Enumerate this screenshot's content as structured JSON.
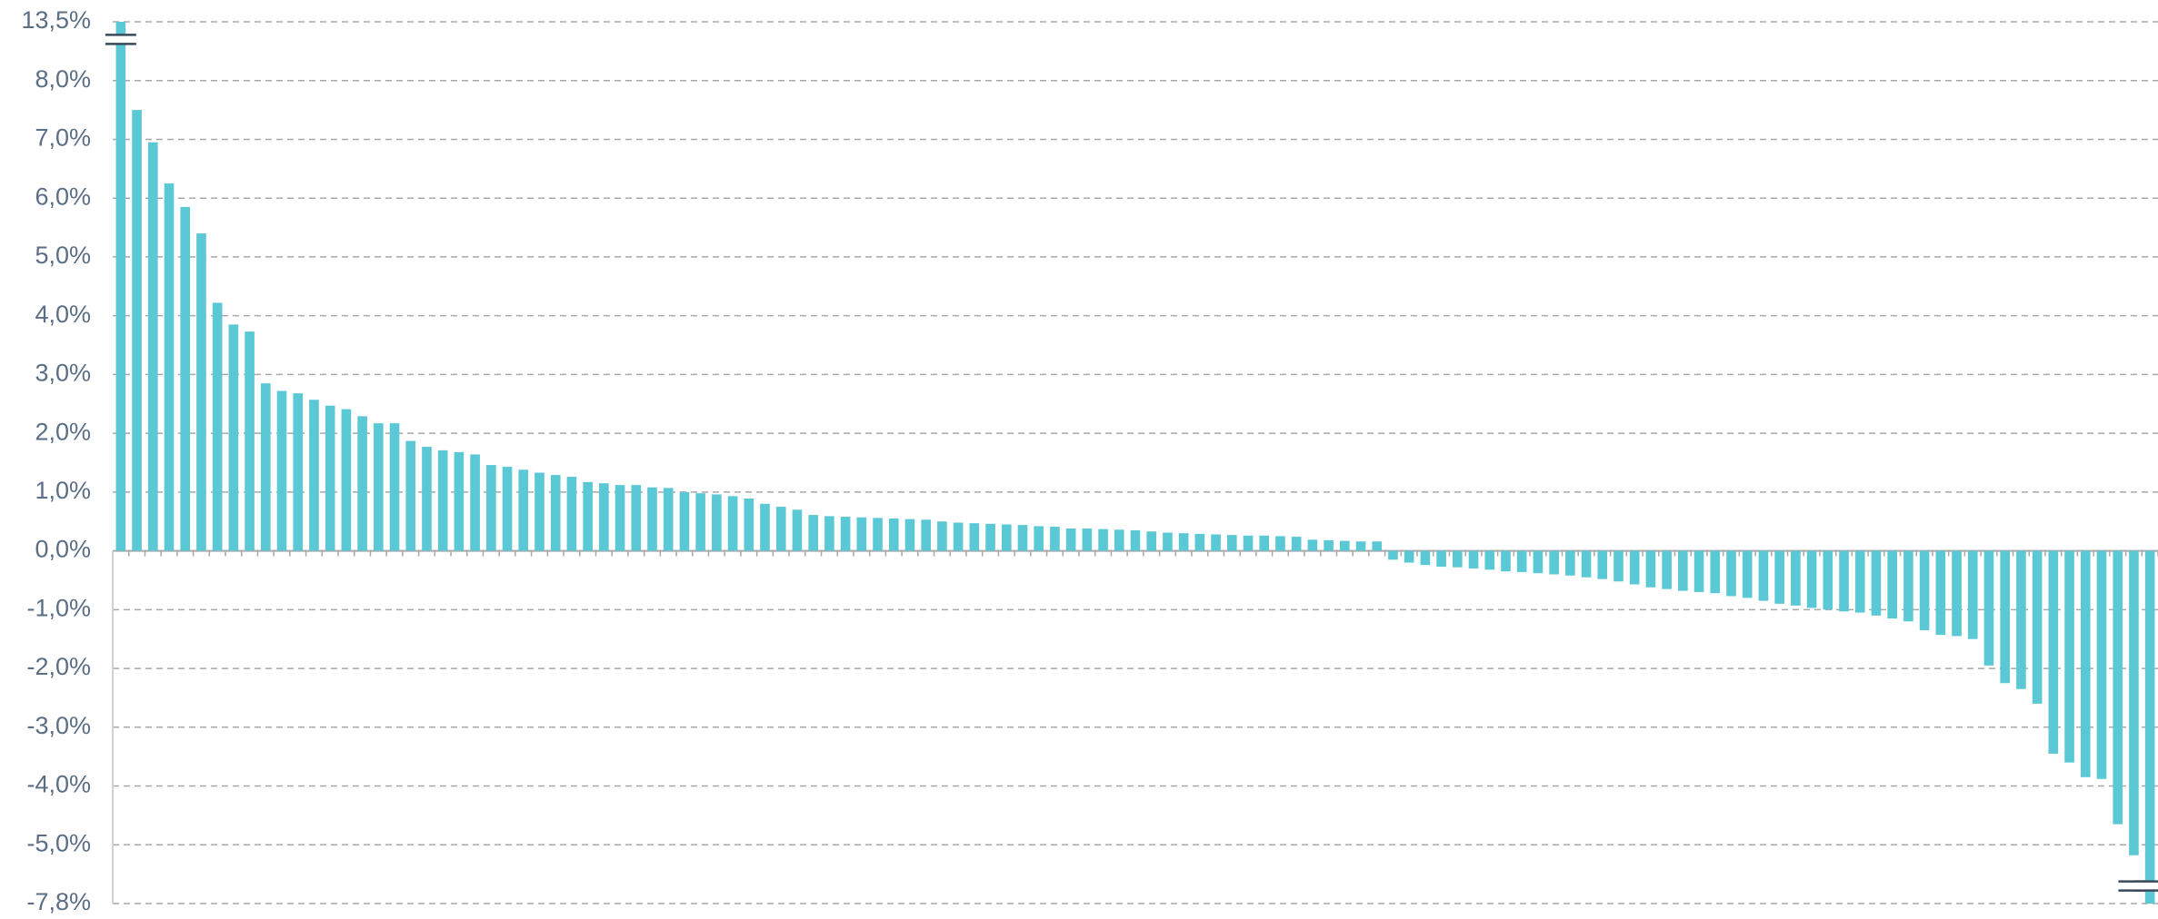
{
  "chart_data": {
    "type": "bar",
    "color": "#5bc8d6",
    "grid": true,
    "values": [
      13.5,
      7.5,
      6.95,
      6.25,
      5.85,
      5.4,
      4.22,
      3.85,
      3.73,
      2.85,
      2.72,
      2.68,
      2.57,
      2.47,
      2.41,
      2.29,
      2.17,
      2.17,
      1.87,
      1.77,
      1.71,
      1.68,
      1.64,
      1.46,
      1.43,
      1.38,
      1.33,
      1.29,
      1.26,
      1.17,
      1.15,
      1.12,
      1.12,
      1.08,
      1.07,
      1.0,
      0.98,
      0.96,
      0.93,
      0.89,
      0.8,
      0.75,
      0.7,
      0.61,
      0.59,
      0.58,
      0.57,
      0.56,
      0.55,
      0.54,
      0.53,
      0.5,
      0.48,
      0.47,
      0.46,
      0.45,
      0.44,
      0.42,
      0.41,
      0.38,
      0.38,
      0.37,
      0.36,
      0.35,
      0.33,
      0.31,
      0.3,
      0.29,
      0.28,
      0.27,
      0.26,
      0.26,
      0.25,
      0.24,
      0.19,
      0.18,
      0.17,
      0.16,
      0.16,
      -0.15,
      -0.2,
      -0.24,
      -0.27,
      -0.28,
      -0.3,
      -0.32,
      -0.35,
      -0.36,
      -0.38,
      -0.4,
      -0.42,
      -0.45,
      -0.48,
      -0.52,
      -0.57,
      -0.62,
      -0.65,
      -0.68,
      -0.7,
      -0.72,
      -0.77,
      -0.8,
      -0.85,
      -0.9,
      -0.93,
      -0.97,
      -1.0,
      -1.03,
      -1.05,
      -1.1,
      -1.15,
      -1.2,
      -1.35,
      -1.43,
      -1.45,
      -1.5,
      -1.95,
      -2.25,
      -2.35,
      -2.6,
      -3.45,
      -3.6,
      -3.85,
      -3.88,
      -4.65,
      -5.5,
      -7.8
    ],
    "ylim": [
      -7.8,
      13.5
    ],
    "yticks": [
      {
        "value": 13.5,
        "label": "13,5%"
      },
      {
        "value": 8,
        "label": "8,0%"
      },
      {
        "value": 7,
        "label": "7,0%"
      },
      {
        "value": 6,
        "label": "6,0%"
      },
      {
        "value": 5,
        "label": "5,0%"
      },
      {
        "value": 4,
        "label": "4,0%"
      },
      {
        "value": 3,
        "label": "3,0%"
      },
      {
        "value": 2,
        "label": "2,0%"
      },
      {
        "value": 1,
        "label": "1,0%"
      },
      {
        "value": 0,
        "label": "0,0%"
      },
      {
        "value": -1,
        "label": "-1,0%"
      },
      {
        "value": -2,
        "label": "-2,0%"
      },
      {
        "value": -3,
        "label": "-3,0%"
      },
      {
        "value": -4,
        "label": "-4,0%"
      },
      {
        "value": -5,
        "label": "-5,0%"
      },
      {
        "value": -7.8,
        "label": "-7,8%"
      }
    ]
  }
}
